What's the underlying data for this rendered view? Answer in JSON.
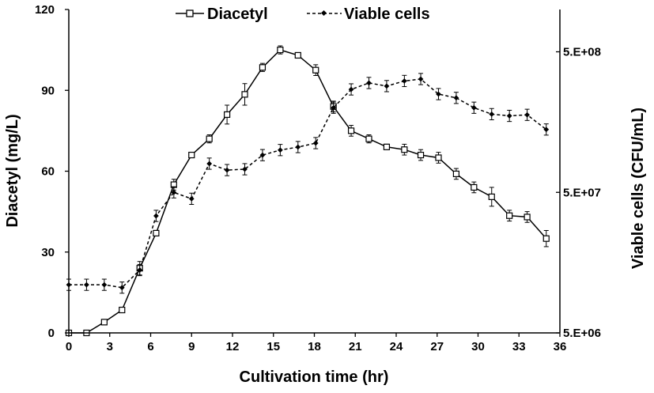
{
  "chart_data": {
    "type": "line",
    "xlabel": "Cultivation time (hr)",
    "ylabel": "Diacetyl  (mg/L)",
    "y2label": "Viable cells  (CFU/mL)",
    "xlim": [
      0,
      36
    ],
    "ylim": [
      0,
      120
    ],
    "y2lim": [
      5000000,
      1000000000
    ],
    "y2_scale": "log",
    "x_ticks": [
      "0",
      "3",
      "6",
      "9",
      "12",
      "15",
      "18",
      "21",
      "24",
      "27",
      "30",
      "33",
      "36"
    ],
    "y_ticks": [
      "0",
      "30",
      "60",
      "90",
      "120"
    ],
    "y2_ticks": [
      "5.E+06",
      "5.E+07",
      "5.E+08"
    ],
    "legend_position": "top",
    "grid": false,
    "series": [
      {
        "name": "Diacetyl",
        "axis": "left",
        "style": "solid",
        "marker": "open-square",
        "color": "#000000",
        "x": [
          0,
          1.3,
          2.6,
          3.9,
          5.2,
          6.4,
          7.7,
          9,
          10.3,
          11.6,
          12.9,
          14.2,
          15.5,
          16.8,
          18.1,
          19.4,
          20.7,
          22,
          23.3,
          24.6,
          25.8,
          27.1,
          28.4,
          29.7,
          31,
          32.3,
          33.6,
          35
        ],
        "values": [
          0,
          0,
          4,
          8.5,
          24,
          37,
          55,
          66,
          72,
          81,
          88.5,
          98.5,
          105,
          103,
          97.5,
          84,
          75,
          72,
          69,
          68,
          66,
          65,
          59,
          54,
          50.5,
          43.5,
          43,
          35
        ],
        "errors": [
          0,
          0,
          1,
          1,
          2.5,
          1,
          2,
          1,
          1.5,
          3.5,
          4,
          1.5,
          1.5,
          1,
          2,
          2,
          2,
          1.5,
          1,
          2,
          2,
          2,
          2,
          2,
          3.5,
          2,
          2,
          3
        ]
      },
      {
        "name": "Viable cells",
        "axis": "right",
        "style": "dashed",
        "marker": "filled-diamond",
        "color": "#000000",
        "x": [
          0,
          1.3,
          2.6,
          3.9,
          5.2,
          6.4,
          7.7,
          9,
          10.3,
          11.6,
          12.9,
          14.2,
          15.5,
          16.8,
          18.1,
          19.4,
          20.7,
          22,
          23.3,
          24.6,
          25.8,
          27.1,
          28.4,
          29.7,
          31,
          32.3,
          33.6,
          35
        ],
        "values": [
          11000000,
          11000000,
          11000000,
          10500000,
          14000000,
          34000000,
          50000000,
          45000000,
          80000000,
          72000000,
          73000000,
          92000000,
          100000000,
          105000000,
          112000000,
          200000000,
          270000000,
          300000000,
          285000000,
          310000000,
          320000000,
          250000000,
          235000000,
          200000000,
          180000000,
          175000000,
          178000000,
          140000000
        ],
        "errors": [
          0.04,
          0.04,
          0.04,
          0.04,
          0.04,
          0.04,
          0.04,
          0.04,
          0.04,
          0.04,
          0.04,
          0.04,
          0.04,
          0.04,
          0.04,
          0.04,
          0.04,
          0.04,
          0.04,
          0.04,
          0.04,
          0.04,
          0.04,
          0.04,
          0.04,
          0.04,
          0.04,
          0.04
        ]
      }
    ]
  }
}
